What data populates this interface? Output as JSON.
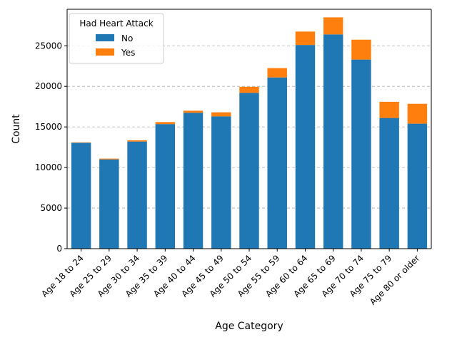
{
  "chart_data": {
    "type": "bar",
    "stacked": true,
    "xlabel": "Age Category",
    "ylabel": "Count",
    "ylim": [
      0,
      29500
    ],
    "yticks": [
      0,
      5000,
      10000,
      15000,
      20000,
      25000
    ],
    "grid": "y-dashed",
    "categories": [
      "Age 18 to 24",
      "Age 25 to 29",
      "Age 30 to 34",
      "Age 35 to 39",
      "Age 40 to 44",
      "Age 45 to 49",
      "Age 50 to 54",
      "Age 55 to 59",
      "Age 60 to 64",
      "Age 65 to 69",
      "Age 70 to 74",
      "Age 75 to 79",
      "Age 80 or older"
    ],
    "legend": {
      "title": "Had Heart Attack",
      "placement": "top-left"
    },
    "series": [
      {
        "name": "No",
        "color": "#1f77b4",
        "values": [
          13050,
          11000,
          13200,
          15350,
          16750,
          16300,
          19200,
          21100,
          25100,
          26400,
          23300,
          16100,
          15400
        ]
      },
      {
        "name": "Yes",
        "color": "#ff7f0e",
        "values": [
          50,
          100,
          150,
          250,
          250,
          500,
          750,
          1150,
          1650,
          2100,
          2450,
          2000,
          2450
        ]
      }
    ]
  }
}
